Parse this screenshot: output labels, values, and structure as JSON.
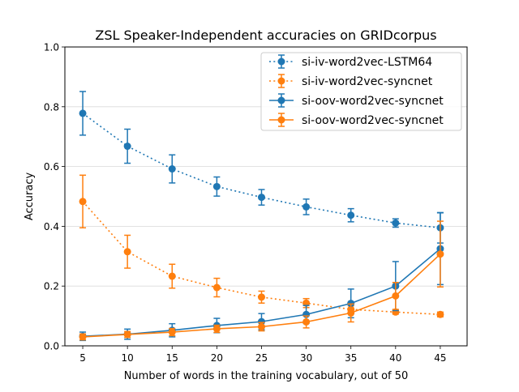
{
  "chart_data": {
    "type": "line",
    "title": "ZSL Speaker-Independent accuracies on GRIDcorpus",
    "xlabel": "Number of words in the training vocabulary, out of 50",
    "ylabel": "Accuracy",
    "xlim": [
      3,
      48
    ],
    "ylim": [
      0,
      1.0
    ],
    "x": [
      5,
      10,
      15,
      20,
      25,
      30,
      35,
      40,
      45
    ],
    "xticks": [
      5,
      10,
      15,
      20,
      25,
      30,
      35,
      40,
      45
    ],
    "yticks": [
      0.0,
      0.2,
      0.4,
      0.6,
      0.8,
      1.0
    ],
    "ytick_labels": [
      "0.0",
      "0.2",
      "0.4",
      "0.6",
      "0.8",
      "1.0"
    ],
    "grid": "horizontal",
    "legend_position": "top-right",
    "series": [
      {
        "name": "si-iv-word2vec-LSTM64",
        "color": "#1f77b4",
        "linestyle": "dotted",
        "values": [
          0.778,
          0.668,
          0.592,
          0.533,
          0.497,
          0.465,
          0.437,
          0.411,
          0.395
        ],
        "errors": [
          0.073,
          0.057,
          0.047,
          0.032,
          0.026,
          0.026,
          0.022,
          0.014,
          0.051
        ]
      },
      {
        "name": "si-iv-word2vec-syncnet",
        "color": "#ff7f0e",
        "linestyle": "dotted",
        "values": [
          0.483,
          0.315,
          0.233,
          0.195,
          0.163,
          0.143,
          0.122,
          0.113,
          0.105
        ],
        "errors": [
          0.088,
          0.055,
          0.04,
          0.031,
          0.02,
          0.015,
          0.012,
          0.007,
          0.008
        ]
      },
      {
        "name": "si-oov-word2vec-syncnet",
        "color": "#1f77b4",
        "linestyle": "solid",
        "values": [
          0.032,
          0.039,
          0.052,
          0.068,
          0.081,
          0.105,
          0.142,
          0.2,
          0.325
        ],
        "errors": [
          0.014,
          0.017,
          0.022,
          0.024,
          0.027,
          0.03,
          0.048,
          0.082,
          0.12
        ]
      },
      {
        "name": "si-oov-word2vec-syncnet",
        "color": "#ff7f0e",
        "linestyle": "solid",
        "values": [
          0.03,
          0.038,
          0.046,
          0.057,
          0.064,
          0.08,
          0.11,
          0.167,
          0.307
        ],
        "errors": [
          0.01,
          0.01,
          0.012,
          0.012,
          0.014,
          0.02,
          0.03,
          0.045,
          0.11
        ]
      }
    ]
  }
}
